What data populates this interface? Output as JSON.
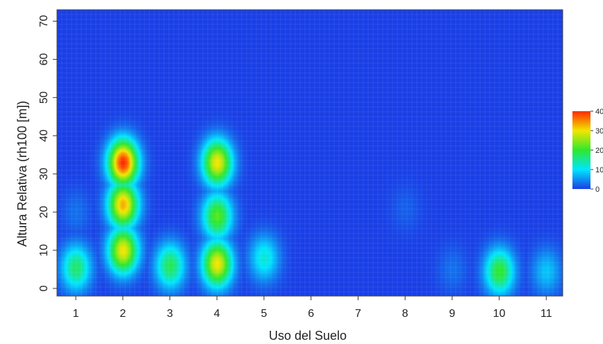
{
  "chart_data": {
    "type": "heatmap",
    "title": "",
    "xlabel": "Uso del Suelo",
    "ylabel": "Altura Relativa (rh100 [m])",
    "x_ticks": [
      1,
      2,
      3,
      4,
      5,
      6,
      7,
      8,
      9,
      10,
      11
    ],
    "y_ticks": [
      0,
      10,
      20,
      30,
      40,
      50,
      60,
      70
    ],
    "xlim": [
      0.6,
      11.35
    ],
    "ylim": [
      -2,
      73
    ],
    "grid": true,
    "legend": {
      "placement": "right",
      "ticks": [
        0,
        10,
        20,
        30,
        40
      ],
      "tick_labels": [
        "0",
        "10",
        "20",
        "30",
        "40"
      ],
      "colors": [
        "#1a3fe6",
        "#00e5ff",
        "#2ee82e",
        "#f2e600",
        "#ff2a00"
      ]
    },
    "density_peaks": [
      {
        "x": 1,
        "y": 5.5,
        "value": 17
      },
      {
        "x": 1,
        "y": 20,
        "value": 3
      },
      {
        "x": 2,
        "y": 33,
        "value": 40
      },
      {
        "x": 2,
        "y": 22,
        "value": 33
      },
      {
        "x": 2,
        "y": 10,
        "value": 30
      },
      {
        "x": 3,
        "y": 6,
        "value": 18
      },
      {
        "x": 4,
        "y": 33,
        "value": 30
      },
      {
        "x": 4,
        "y": 19,
        "value": 22
      },
      {
        "x": 4,
        "y": 6.5,
        "value": 30
      },
      {
        "x": 5,
        "y": 8,
        "value": 12
      },
      {
        "x": 8,
        "y": 21,
        "value": 2
      },
      {
        "x": 9,
        "y": 5,
        "value": 3
      },
      {
        "x": 10,
        "y": 4.5,
        "value": 20
      },
      {
        "x": 11,
        "y": 4.5,
        "value": 8
      }
    ]
  }
}
